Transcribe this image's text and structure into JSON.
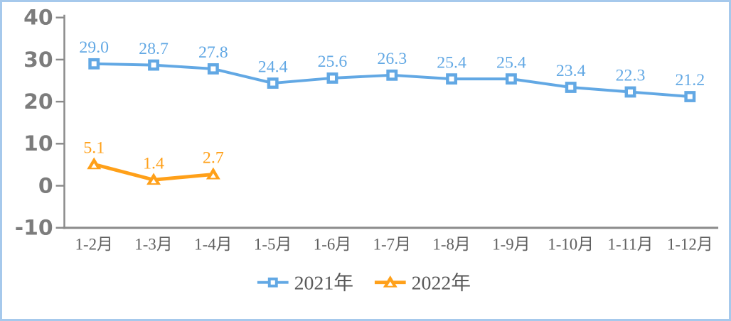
{
  "chart_data": {
    "type": "line",
    "title": "",
    "categories": [
      "1-2月",
      "1-3月",
      "1-4月",
      "1-5月",
      "1-6月",
      "1-7月",
      "1-8月",
      "1-9月",
      "1-10月",
      "1-11月",
      "1-12月"
    ],
    "series": [
      {
        "name": "2021年",
        "marker": "square",
        "color": "#62a8e4",
        "values": [
          29.0,
          28.7,
          27.8,
          24.4,
          25.6,
          26.3,
          25.4,
          25.4,
          23.4,
          22.3,
          21.2
        ],
        "labels": [
          "29.0",
          "28.7",
          "27.8",
          "24.4",
          "25.6",
          "26.3",
          "25.4",
          "25.4",
          "23.4",
          "22.3",
          "21.2"
        ]
      },
      {
        "name": "2022年",
        "marker": "triangle",
        "color": "#ffa019",
        "values": [
          5.1,
          1.4,
          2.7,
          null,
          null,
          null,
          null,
          null,
          null,
          null,
          null
        ],
        "labels": [
          "5.1",
          "1.4",
          "2.7"
        ]
      }
    ],
    "ylim": [
      -10,
      40
    ],
    "yticks": [
      40,
      30,
      20,
      10,
      0,
      -10
    ],
    "ytick_labels": [
      "40",
      "30",
      "20",
      "10",
      "0",
      "-10"
    ],
    "xlabel": "",
    "ylabel": "",
    "grid": false,
    "legend_position": "bottom",
    "style": {
      "axis_color": "#8a8a8a",
      "ytick_label_color": "#7c7c7c",
      "xtick_label_color": "#5f5f5f",
      "legend_text_color": "#595959",
      "border_color": "#a6c9ec",
      "background": "#ffffff",
      "marker_inner_color": "#ffffff"
    }
  }
}
